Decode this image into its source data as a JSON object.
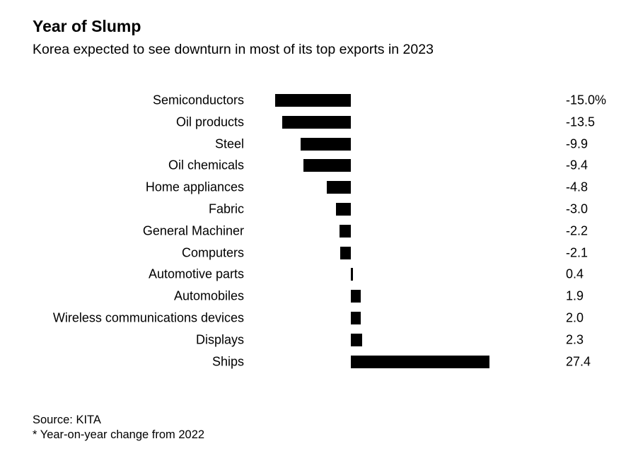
{
  "header": {
    "title": "Year of Slump",
    "subtitle": "Korea expected to see downturn in most of its top exports in 2023"
  },
  "chart_data": {
    "type": "bar",
    "orientation": "horizontal",
    "title": "Year of Slump",
    "subtitle": "Korea expected to see downturn in most of its top exports in 2023",
    "categories": [
      "Semiconductors",
      "Oil products",
      "Steel",
      "Oil chemicals",
      "Home appliances",
      "Fabric",
      "General Machiner",
      "Computers",
      "Automotive parts",
      "Automobiles",
      "Wireless communications devices",
      "Displays",
      "Ships"
    ],
    "values": [
      -15.0,
      -13.5,
      -9.9,
      -9.4,
      -4.8,
      -3.0,
      -2.2,
      -2.1,
      0.4,
      1.9,
      2.0,
      2.3,
      27.4
    ],
    "value_labels": [
      "-15.0%",
      "-13.5",
      "-9.9",
      "-9.4",
      "-4.8",
      "-3.0",
      "-2.2",
      "-2.1",
      "0.4",
      "1.9",
      "2.0",
      "2.3",
      "27.4"
    ],
    "unit": "%",
    "bar_color": "#000000",
    "background_color": "#ffffff",
    "text_color": "#000000",
    "xlim": [
      -15.0,
      27.4
    ],
    "grid": false,
    "legend": false,
    "value_label_position": "right-column",
    "category_label_position": "left-column"
  },
  "footer": {
    "source": "Source: KITA",
    "note": "* Year-on-year change from 2022"
  }
}
